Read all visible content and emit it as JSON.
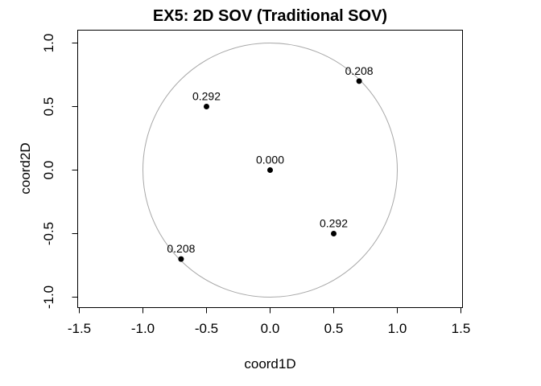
{
  "title": "EX5: 2D SOV (Traditional SOV)",
  "chart_data": {
    "type": "scatter",
    "title": "EX5: 2D SOV (Traditional SOV)",
    "xlabel": "coord1D",
    "ylabel": "coord2D",
    "xlim": [
      -1.5,
      1.5
    ],
    "ylim": [
      -1.0,
      1.0
    ],
    "grid": false,
    "legend": false,
    "xticks": [
      {
        "v": -1.5,
        "label": "-1.5"
      },
      {
        "v": -1.0,
        "label": "-1.0"
      },
      {
        "v": -0.5,
        "label": "-0.5"
      },
      {
        "v": 0.0,
        "label": "0.0"
      },
      {
        "v": 0.5,
        "label": "0.5"
      },
      {
        "v": 1.0,
        "label": "1.0"
      },
      {
        "v": 1.5,
        "label": "1.5"
      }
    ],
    "yticks": [
      {
        "v": -1.0,
        "label": "-1.0"
      },
      {
        "v": -0.5,
        "label": "-0.5"
      },
      {
        "v": 0.0,
        "label": "0.0"
      },
      {
        "v": 0.5,
        "label": "0.5"
      },
      {
        "v": 1.0,
        "label": "1.0"
      }
    ],
    "reference_circle": {
      "cx": 0,
      "cy": 0,
      "radius": 1.0,
      "color": "#a8a8a8"
    },
    "points": [
      {
        "x": -0.5,
        "y": 0.5,
        "label": "0.292"
      },
      {
        "x": 0.7,
        "y": 0.7,
        "label": "0.208"
      },
      {
        "x": 0.0,
        "y": 0.0,
        "label": "0.000"
      },
      {
        "x": 0.5,
        "y": -0.5,
        "label": "0.292"
      },
      {
        "x": -0.7,
        "y": -0.7,
        "label": "0.208"
      }
    ],
    "point_color": "#000000",
    "label_position": "above"
  },
  "colors": {
    "background": "#ffffff",
    "axis": "#000000",
    "text": "#000000",
    "circle": "#a8a8a8"
  }
}
